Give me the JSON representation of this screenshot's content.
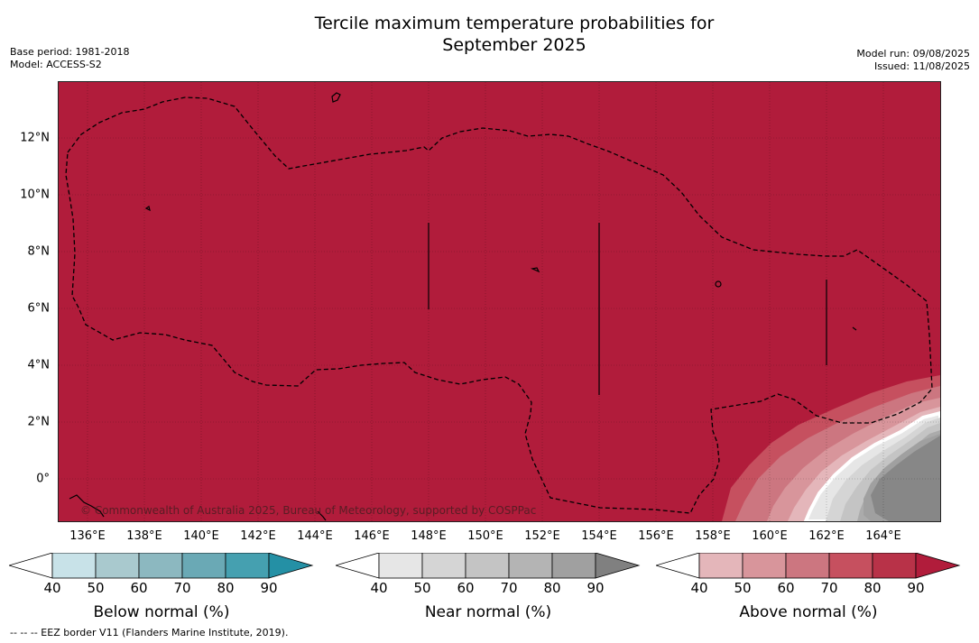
{
  "title_line1": "Tercile maximum temperature probabilities for",
  "title_line2": "September 2025",
  "base_period": "Base period: 1981-2018",
  "model": "Model: ACCESS-S2",
  "model_run": "Model run: 09/08/2025",
  "issued": "Issued: 11/08/2025",
  "copyright": "© Commonwealth of Australia 2025, Bureau of Meteorology, supported by COSPPac",
  "footer": "--  --  -- EEZ border V11 (Flanders Marine Institute, 2019).",
  "map": {
    "x_ticks": [
      "136°E",
      "138°E",
      "140°E",
      "142°E",
      "144°E",
      "146°E",
      "148°E",
      "150°E",
      "152°E",
      "154°E",
      "156°E",
      "158°E",
      "160°E",
      "162°E",
      "164°E"
    ],
    "y_ticks": [
      "12°N",
      "10°N",
      "8°N",
      "6°N",
      "4°N",
      "2°N",
      "0°"
    ],
    "colors": {
      "above_80": "#b11c3b",
      "above_70": "#c6505f",
      "above_60": "#cc7680",
      "above_50": "#d8959b",
      "above_40": "#e4b6ba",
      "near_40": "#e6e6e6",
      "near_50": "#d5d5d5",
      "near_60": "#c4c4c4",
      "near_70": "#ababab",
      "near_80": "#a0a0a0",
      "near_90": "#878787"
    }
  },
  "colorbars": [
    {
      "label": "Below normal (%)",
      "ticks": [
        "40",
        "50",
        "60",
        "70",
        "80",
        "90"
      ],
      "colors": [
        "#ffffff",
        "#c8e2e8",
        "#a9c9ce",
        "#8cb8c0",
        "#6aa9b5",
        "#45a0b0",
        "#2490a5"
      ]
    },
    {
      "label": "Near normal (%)",
      "ticks": [
        "40",
        "50",
        "60",
        "70",
        "80",
        "90"
      ],
      "colors": [
        "#ffffff",
        "#e6e6e6",
        "#d5d5d5",
        "#c4c4c4",
        "#b4b4b4",
        "#a0a0a0",
        "#808080"
      ]
    },
    {
      "label": "Above normal (%)",
      "ticks": [
        "40",
        "50",
        "60",
        "70",
        "80",
        "90"
      ],
      "colors": [
        "#ffffff",
        "#e4b6ba",
        "#d8959b",
        "#cc7680",
        "#c6505f",
        "#b83248",
        "#b11c3b"
      ]
    }
  ]
}
